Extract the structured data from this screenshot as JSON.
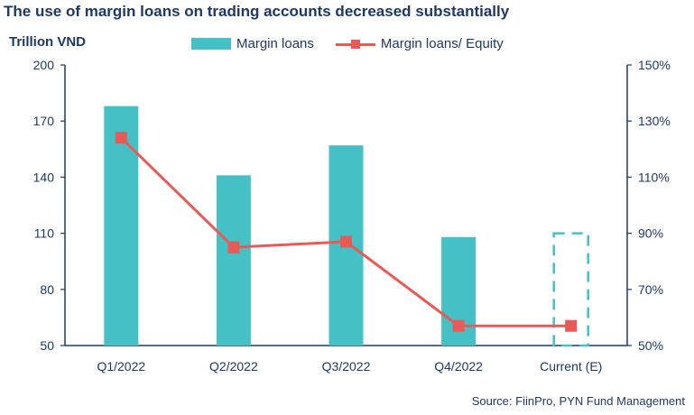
{
  "title": "The use of margin loans on trading accounts decreased substantially",
  "source": "Source: FiinPro, PYN Fund Management",
  "chart_data": {
    "type": "bar",
    "title": "The use of margin loans on trading accounts decreased substantially",
    "ylabel": "Trillion VND",
    "categories": [
      "Q1/2022",
      "Q2/2022",
      "Q3/2022",
      "Q4/2022",
      "Current (E)"
    ],
    "ylim": [
      50,
      200
    ],
    "yticks": [
      "200",
      "170",
      "140",
      "110",
      "80",
      "50"
    ],
    "y2lim": [
      50,
      150
    ],
    "y2ticks": [
      "150%",
      "130%",
      "110%",
      "90%",
      "70%",
      "50%"
    ],
    "series": [
      {
        "name": "Margin loans",
        "type": "bar",
        "axis": "left",
        "color": "#45c1c6",
        "values": [
          178,
          141,
          157,
          108,
          110
        ],
        "estimated": [
          false,
          false,
          false,
          false,
          true
        ]
      },
      {
        "name": "Margin loans/ Equity",
        "type": "line",
        "axis": "right",
        "color": "#e85a55",
        "values": [
          124,
          85,
          87,
          57,
          57
        ]
      }
    ],
    "grid": false,
    "legend": "top-center"
  }
}
